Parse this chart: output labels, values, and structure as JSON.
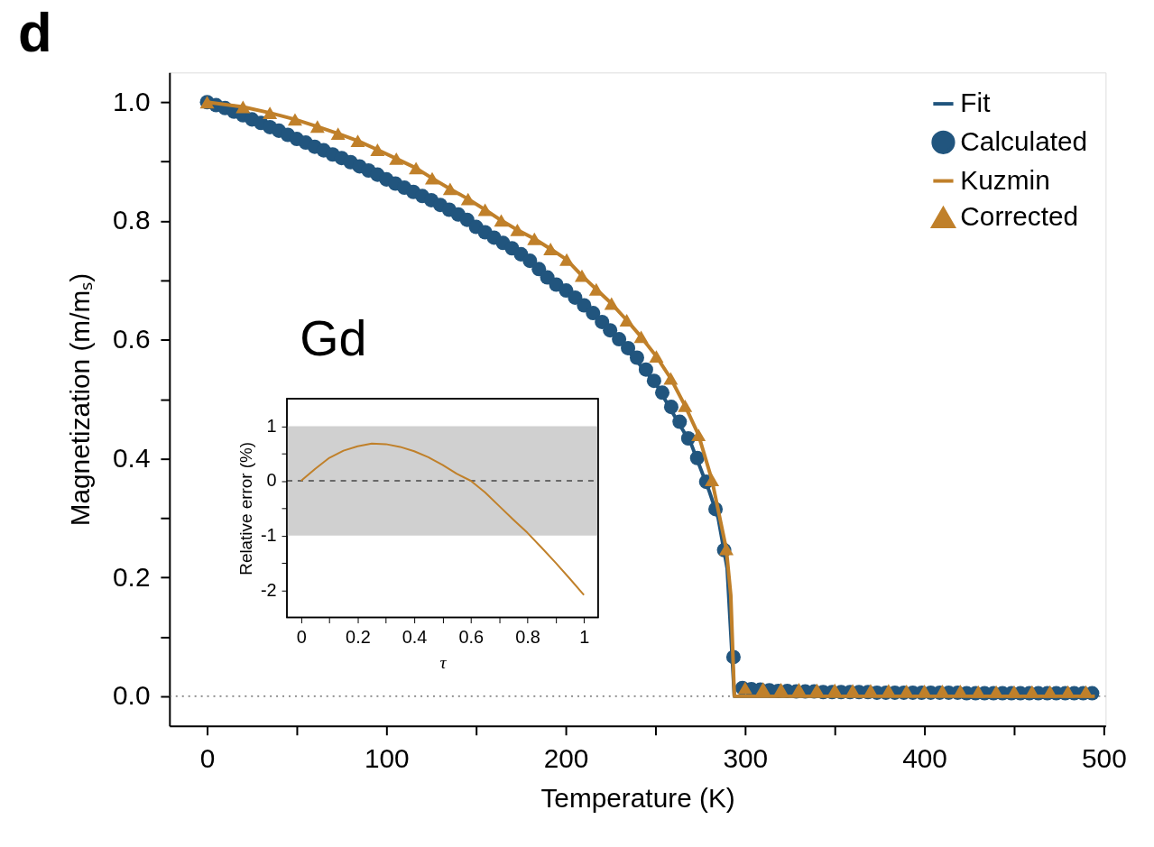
{
  "chart_data": [
    {
      "type": "line",
      "xlabel": "Temperature (K)",
      "ylabel": "Magnetization (m/mₛ)",
      "annotations": [
        "d",
        "Gd"
      ],
      "xlim": [
        -21,
        501
      ],
      "ylim": [
        -0.05,
        1.05
      ],
      "xticks": [
        0,
        {
          "value": 50,
          "label": null
        },
        100,
        {
          "value": 150,
          "label": null
        },
        200,
        {
          "value": 250,
          "label": null
        },
        300,
        {
          "value": 350,
          "label": null
        },
        400,
        {
          "value": 450,
          "label": null
        },
        500
      ],
      "yticks": [
        {
          "value": 0,
          "label": "0.0"
        },
        {
          "value": 0.1,
          "label": null
        },
        0.2,
        {
          "value": 0.3,
          "label": null
        },
        0.4,
        {
          "value": 0.5,
          "label": null
        },
        0.6,
        {
          "value": 0.7,
          "label": null
        },
        0.8,
        {
          "value": 0.9,
          "label": null
        },
        {
          "value": 1,
          "label": "1.0"
        }
      ],
      "grid": false,
      "legend": "top right",
      "ref_lines": [
        {
          "axis": "y",
          "value": 0,
          "label": null,
          "line_style": "dotted",
          "color": "#555555"
        }
      ],
      "series": [
        {
          "name": "Fit",
          "color": "#21557e",
          "line_style": "solid",
          "x": [
            0,
            25,
            50,
            75,
            100,
            125,
            150,
            175,
            200,
            225,
            250,
            260,
            270,
            280,
            285,
            290,
            294,
            495
          ],
          "values": [
            1.0,
            0.971,
            0.938,
            0.906,
            0.87,
            0.835,
            0.79,
            0.744,
            0.683,
            0.616,
            0.527,
            0.475,
            0.424,
            0.345,
            0.3,
            0.215,
            0,
            0
          ]
        },
        {
          "name": "Calculated",
          "type": "scatter",
          "marker": "circle",
          "color": "#21557e",
          "x": [
            0,
            5,
            10,
            15,
            20,
            25,
            30,
            35,
            40,
            45,
            50,
            55,
            60,
            65,
            70,
            75,
            80,
            85,
            90,
            95,
            100,
            105,
            110,
            115,
            120,
            125,
            130,
            135,
            140,
            145,
            150,
            155,
            160,
            165,
            170,
            175,
            180,
            185,
            189.7,
            194.7,
            200.2,
            205.2,
            210.2,
            215.2,
            220.2,
            224.7,
            229.7,
            234.7,
            239.7,
            244.7,
            249.2,
            253.8,
            258.8,
            263.5,
            268.3,
            273.3,
            278.3,
            283.5,
            288.3,
            293.5,
            298.5,
            303.5,
            308.5,
            313.5,
            318.5,
            323.5,
            328.5,
            333.5,
            338.5,
            343.5,
            348.5,
            353.5,
            358.5,
            363.5,
            368.5,
            373.5,
            378.5,
            383.5,
            388.5,
            393.5,
            398.5,
            403.5,
            408.5,
            413.5,
            418.5,
            423.5,
            428.5,
            433.5,
            438.5,
            443.5,
            448.5,
            453.5,
            458.5,
            463.5,
            468.5,
            473.5,
            478.5,
            483.5,
            488.5,
            493.5
          ],
          "values": [
            1.0,
            0.995,
            0.99,
            0.984,
            0.978,
            0.971,
            0.965,
            0.958,
            0.952,
            0.945,
            0.938,
            0.932,
            0.925,
            0.919,
            0.912,
            0.906,
            0.899,
            0.892,
            0.885,
            0.878,
            0.87,
            0.863,
            0.856,
            0.849,
            0.842,
            0.835,
            0.827,
            0.819,
            0.811,
            0.802,
            0.79,
            0.781,
            0.772,
            0.763,
            0.754,
            0.744,
            0.733,
            0.719,
            0.705,
            0.693,
            0.683,
            0.671,
            0.658,
            0.645,
            0.63,
            0.616,
            0.601,
            0.586,
            0.57,
            0.55,
            0.531,
            0.511,
            0.487,
            0.462,
            0.434,
            0.401,
            0.361,
            0.315,
            0.246,
            0.066,
            0.014,
            0.012,
            0.011,
            0.01,
            0.009,
            0.009,
            0.008,
            0.008,
            0.008,
            0.007,
            0.007,
            0.007,
            0.007,
            0.007,
            0.007,
            0.006,
            0.006,
            0.006,
            0.006,
            0.006,
            0.006,
            0.006,
            0.006,
            0.006,
            0.006,
            0.005,
            0.005,
            0.005,
            0.005,
            0.005,
            0.005,
            0.005,
            0.005,
            0.005,
            0.005,
            0.005,
            0.005,
            0.005,
            0.005,
            0.005
          ]
        },
        {
          "name": "Kuzmin",
          "color": "#c0802a",
          "line_style": "solid",
          "x": [
            0,
            20,
            35,
            49,
            61.5,
            73,
            84,
            95,
            105.5,
            116.5,
            125.5,
            135.5,
            145.5,
            155,
            164,
            173,
            182.5,
            191.5,
            200.5,
            209,
            217,
            225.5,
            234,
            242,
            250.5,
            258.5,
            266.5,
            274,
            281.5,
            289.5,
            292,
            294,
            495
          ],
          "values": [
            1.0,
            0.992,
            0.982,
            0.971,
            0.959,
            0.947,
            0.935,
            0.92,
            0.905,
            0.889,
            0.872,
            0.854,
            0.837,
            0.819,
            0.801,
            0.785,
            0.77,
            0.753,
            0.735,
            0.708,
            0.685,
            0.661,
            0.633,
            0.605,
            0.572,
            0.535,
            0.489,
            0.44,
            0.364,
            0.248,
            0.17,
            0,
            0
          ]
        },
        {
          "name": "Corrected",
          "type": "scatter",
          "marker": "triangle",
          "color": "#c0802a",
          "x": [
            0,
            20,
            35,
            49,
            61.5,
            73,
            84,
            95,
            105.5,
            116.5,
            125.5,
            135.5,
            145.5,
            155,
            164,
            173,
            182.5,
            191.5,
            200.5,
            209,
            217,
            225.5,
            234,
            242,
            250.5,
            258.5,
            266.5,
            274,
            281.5,
            289.5,
            300,
            310,
            320,
            330,
            340,
            350,
            360,
            370,
            380,
            390,
            400,
            410,
            420,
            430,
            440,
            450,
            460,
            470,
            480,
            490
          ],
          "values": [
            1.0,
            0.992,
            0.982,
            0.971,
            0.959,
            0.947,
            0.935,
            0.92,
            0.905,
            0.889,
            0.872,
            0.854,
            0.837,
            0.819,
            0.801,
            0.785,
            0.77,
            0.753,
            0.735,
            0.708,
            0.685,
            0.661,
            0.633,
            0.605,
            0.572,
            0.535,
            0.489,
            0.44,
            0.364,
            0.248,
            0.014,
            0.013,
            0.012,
            0.012,
            0.011,
            0.011,
            0.01,
            0.01,
            0.01,
            0.009,
            0.009,
            0.009,
            0.009,
            0.008,
            0.008,
            0.008,
            0.008,
            0.008,
            0.008,
            0.008
          ]
        }
      ]
    },
    {
      "type": "line",
      "xlabel": "τ",
      "ylabel": "Relative error (%)",
      "xlim": [
        -0.05,
        1.05
      ],
      "ylim": [
        -2.5,
        1.5
      ],
      "xticks": [
        0,
        {
          "value": 0.1,
          "label": null
        },
        0.2,
        {
          "value": 0.3,
          "label": null
        },
        0.4,
        {
          "value": 0.5,
          "label": null
        },
        0.6,
        {
          "value": 0.7,
          "label": null
        },
        0.8,
        {
          "value": 0.9,
          "label": null
        },
        1
      ],
      "yticks": [
        -2,
        {
          "value": -1.5,
          "label": null
        },
        -1,
        {
          "value": -0.5,
          "label": null
        },
        0,
        {
          "value": 0.5,
          "label": null
        },
        1
      ],
      "grid": false,
      "bands": [
        {
          "axis": "y",
          "from": -1,
          "to": 1,
          "label": null,
          "color": "#d0d0d0"
        }
      ],
      "ref_lines": [
        {
          "axis": "y",
          "value": 0,
          "label": null,
          "line_style": "dashed",
          "color": "#000000"
        }
      ],
      "series": [
        {
          "color": "#c0802a",
          "line_style": "solid",
          "x": [
            0,
            0.05,
            0.1,
            0.15,
            0.2,
            0.25,
            0.3,
            0.35,
            0.4,
            0.45,
            0.5,
            0.55,
            0.6,
            0.65,
            0.7,
            0.75,
            0.8,
            0.85,
            0.9,
            0.95,
            1.0
          ],
          "values": [
            0,
            0.22,
            0.42,
            0.55,
            0.63,
            0.68,
            0.67,
            0.62,
            0.54,
            0.43,
            0.29,
            0.13,
            0.0,
            -0.21,
            -0.46,
            -0.71,
            -0.95,
            -1.22,
            -1.5,
            -1.79,
            -2.09
          ]
        }
      ]
    }
  ]
}
